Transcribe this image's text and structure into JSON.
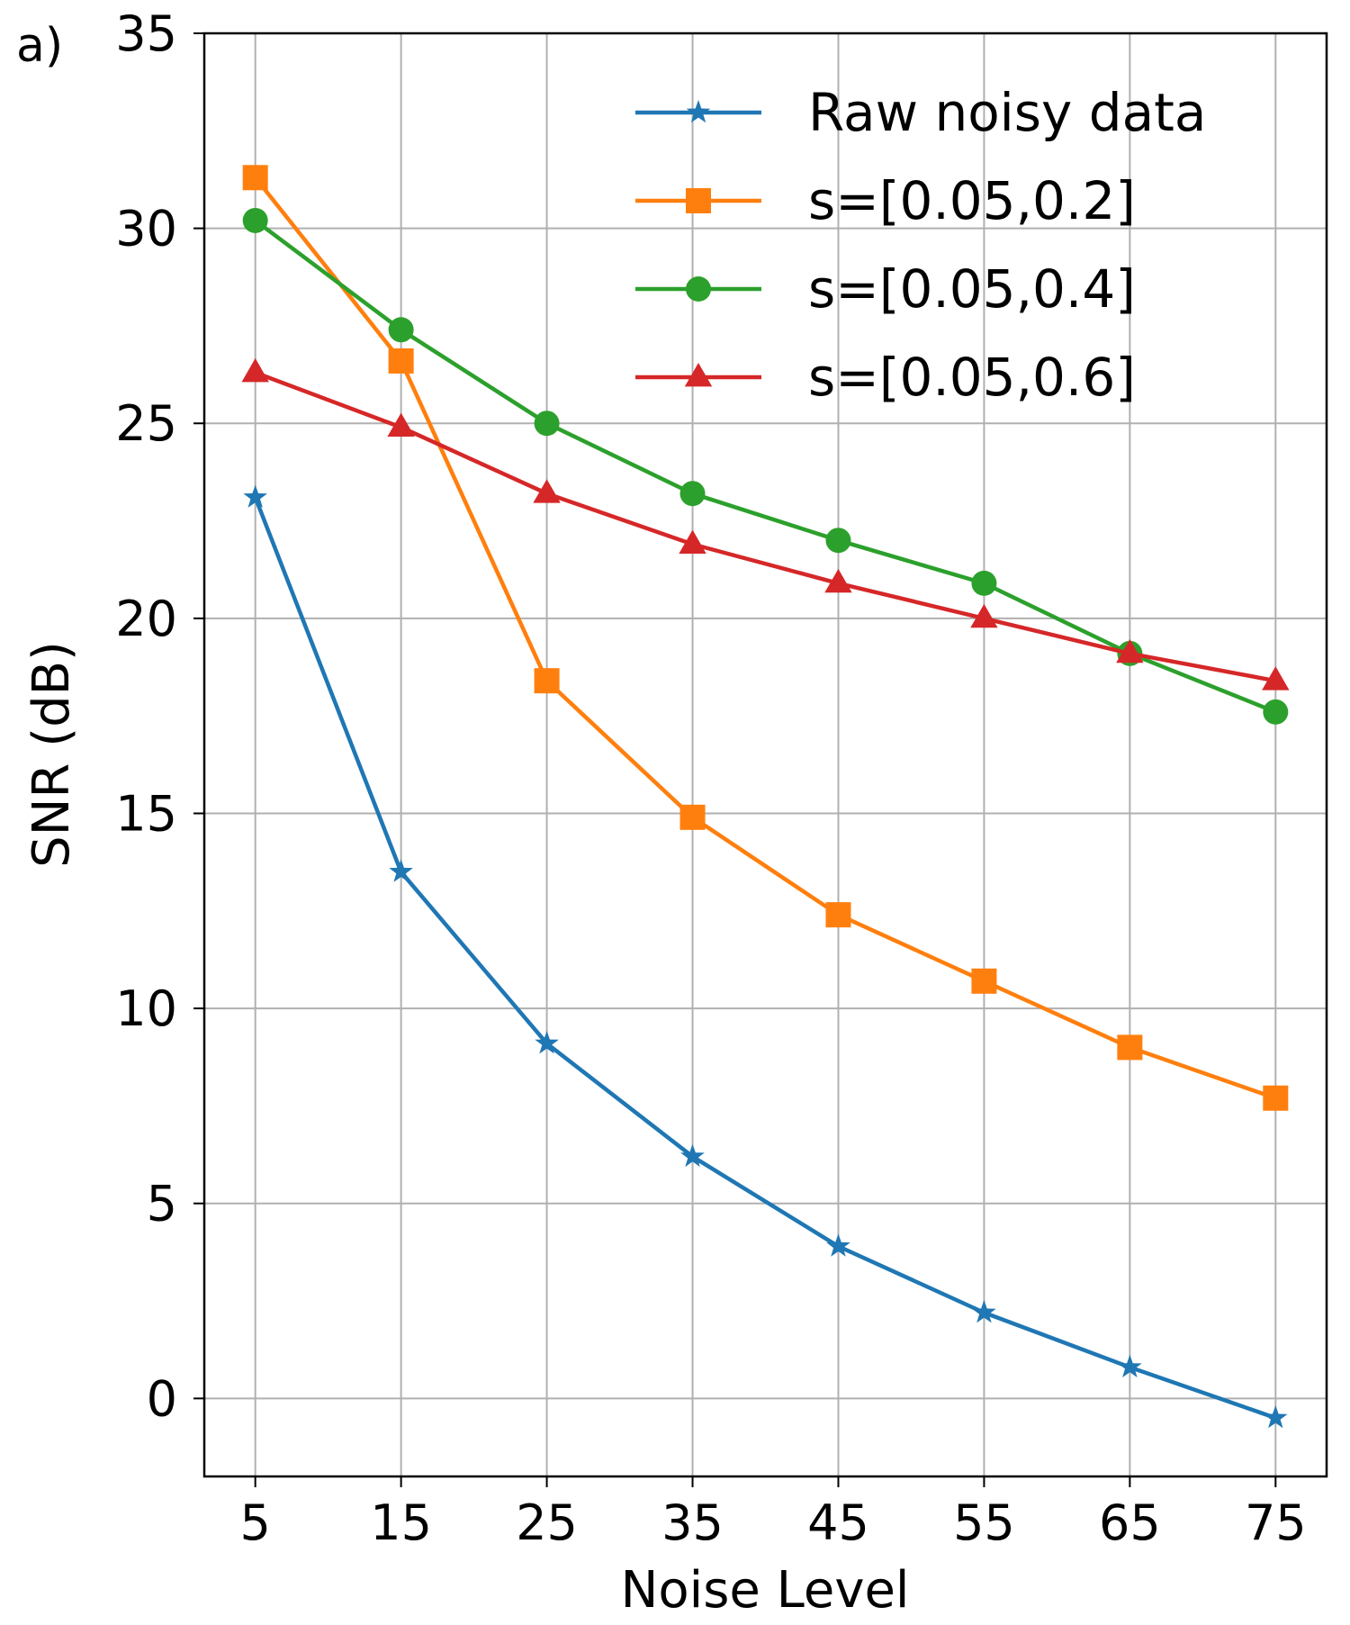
{
  "panel_label": "a)",
  "chart_data": {
    "type": "line",
    "title": "",
    "xlabel": "Noise Level",
    "ylabel": "SNR (dB)",
    "x": [
      5,
      15,
      25,
      35,
      45,
      55,
      65,
      75
    ],
    "xticks": [
      5,
      15,
      25,
      35,
      45,
      55,
      65,
      75
    ],
    "yticks": [
      0,
      5,
      10,
      15,
      20,
      25,
      30,
      35
    ],
    "xlim": [
      1.5,
      78.5
    ],
    "ylim": [
      -2,
      35
    ],
    "grid": true,
    "legend_position": "top-right",
    "series": [
      {
        "name": "Raw noisy data",
        "color": "#1f77b4",
        "marker": "star",
        "values": [
          23.1,
          13.5,
          9.1,
          6.2,
          3.9,
          2.2,
          0.8,
          -0.5
        ]
      },
      {
        "name": "s=[0.05,0.2]",
        "color": "#ff7f0e",
        "marker": "square",
        "values": [
          31.3,
          26.6,
          18.4,
          14.9,
          12.4,
          10.7,
          9.0,
          7.7
        ]
      },
      {
        "name": "s=[0.05,0.4]",
        "color": "#2ca02c",
        "marker": "circle",
        "values": [
          30.2,
          27.4,
          25.0,
          23.2,
          22.0,
          20.9,
          19.1,
          17.6
        ]
      },
      {
        "name": "s=[0.05,0.6]",
        "color": "#d62728",
        "marker": "triangle",
        "values": [
          26.3,
          24.9,
          23.2,
          21.9,
          20.9,
          20.0,
          19.1,
          18.4
        ]
      }
    ]
  }
}
